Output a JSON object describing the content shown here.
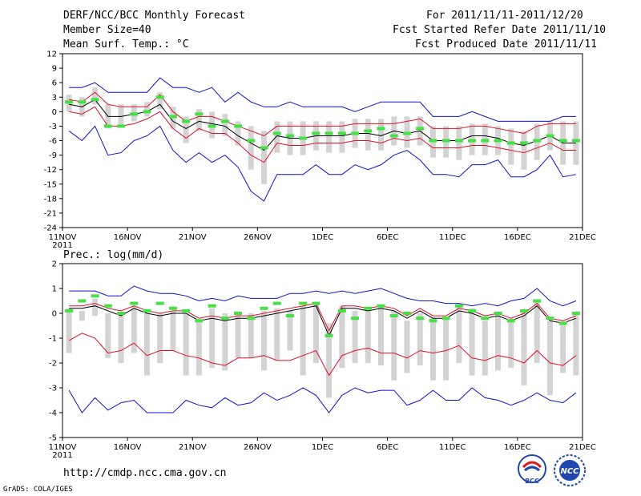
{
  "header": {
    "title": "DERF/NCC/BCC Monthly Forecast",
    "member_size": "Member Size=40",
    "variable": "Mean Surf. Temp.: °C",
    "period": "For 2011/11/11-2011/12/20",
    "started": "Fcst Started Refer Date 2011/11/10",
    "produced": "Fcst Produced Date 2011/11/11"
  },
  "footer": {
    "url": "http://cmdp.ncc.cma.gov.cn",
    "grads": "GrADS: COLA/IGES",
    "bcc_logo_text": "BCC",
    "ncc_logo_text": "NCC"
  },
  "colors": {
    "box": "#d3d3d3",
    "median": "#000000",
    "percentile": "#e0102a",
    "extreme": "#1010d0",
    "obs": "#44e044"
  },
  "chart_data": [
    {
      "type": "box-time-series",
      "title": "Mean Surf. Temp.: °C",
      "ylabel": "°C",
      "ylim": [
        -24,
        12
      ],
      "yticks": [
        12,
        9,
        6,
        3,
        0,
        -3,
        -6,
        -9,
        -12,
        -15,
        -18,
        -21,
        -24
      ],
      "x_tick_labels": [
        "11NOV",
        "16NOV",
        "21NOV",
        "26NOV",
        "1DEC",
        "6DEC",
        "11DEC",
        "16DEC",
        "21DEC"
      ],
      "x_year_label": "2011",
      "x_tick_days": [
        0,
        5,
        10,
        15,
        20,
        25,
        30,
        35,
        40
      ],
      "days": 40,
      "series": [
        {
          "name": "max",
          "color": "#1010d0",
          "values": [
            5,
            5,
            6,
            4,
            4,
            4,
            4,
            7,
            5,
            5,
            4,
            5,
            2,
            4,
            2,
            1,
            1,
            2,
            1,
            1,
            1,
            1,
            0,
            1,
            2,
            2,
            2,
            2,
            -1,
            -1,
            -1,
            0,
            -1,
            -2,
            -2,
            -2,
            -2,
            -2,
            -1,
            -1
          ]
        },
        {
          "name": "upper",
          "color": "#e0102a",
          "values": [
            2.5,
            2,
            4,
            1.5,
            1,
            1,
            1,
            3.5,
            0,
            -2,
            -1,
            -1,
            -2,
            -3,
            -4,
            -5,
            -3,
            -3,
            -3,
            -3,
            -3,
            -3,
            -2.5,
            -2.5,
            -2.5,
            -2.5,
            -2,
            -1.5,
            -3.5,
            -3.5,
            -3.5,
            -3,
            -3,
            -3.5,
            -4,
            -4.5,
            -3,
            -2.5,
            -2.5,
            -2.5
          ]
        },
        {
          "name": "median",
          "color": "#000000",
          "values": [
            1.5,
            1,
            2.5,
            -1,
            -1,
            -0.5,
            0,
            1.5,
            -2,
            -3.5,
            -2,
            -2.5,
            -3,
            -5,
            -6.5,
            -8,
            -5,
            -5.5,
            -5.5,
            -5,
            -5,
            -5,
            -4.5,
            -4.5,
            -5,
            -4,
            -4.5,
            -4,
            -6,
            -6,
            -6,
            -5,
            -5,
            -5.5,
            -6.5,
            -7,
            -6,
            -5,
            -6.5,
            -6.5
          ]
        },
        {
          "name": "lower",
          "color": "#e0102a",
          "values": [
            0,
            -0.5,
            1,
            -3,
            -3,
            -2.5,
            -1.5,
            0,
            -3.5,
            -5.5,
            -3.5,
            -4.5,
            -4.5,
            -6.5,
            -9,
            -10.5,
            -6.5,
            -7,
            -7,
            -6.5,
            -6.5,
            -6.5,
            -6,
            -6,
            -6.5,
            -5.5,
            -6,
            -5.5,
            -7.5,
            -7.5,
            -7.5,
            -7,
            -7,
            -7.5,
            -8,
            -8.5,
            -7.5,
            -6.5,
            -8,
            -8
          ]
        },
        {
          "name": "min",
          "color": "#1010d0",
          "values": [
            -4,
            -6,
            -3,
            -9,
            -8.5,
            -6,
            -5,
            -3,
            -8,
            -10.5,
            -8.5,
            -10.5,
            -9,
            -11.5,
            -16.5,
            -18.5,
            -13,
            -13,
            -13,
            -11,
            -13,
            -13,
            -11,
            -12,
            -11,
            -9,
            -8,
            -10,
            -13,
            -13,
            -13.5,
            -11,
            -11,
            -10,
            -13.5,
            -13.5,
            -12,
            -9,
            -13.5,
            -13
          ]
        }
      ],
      "boxes_low": [
        0,
        -1,
        1.5,
        -3.5,
        -3,
        -2,
        -1,
        0.5,
        -3.5,
        -6.5,
        -4,
        -5.5,
        -5,
        -7,
        -12,
        -15,
        -8.5,
        -9,
        -9,
        -8,
        -8.5,
        -8.5,
        -7.5,
        -8,
        -8,
        -7,
        -7.5,
        -7,
        -9.5,
        -9.5,
        -10,
        -9,
        -9,
        -9,
        -11,
        -12,
        -10,
        -8,
        -11,
        -11
      ],
      "boxes_high": [
        3.5,
        3,
        5,
        1.5,
        1.5,
        1.5,
        2,
        4,
        1,
        -1,
        0.5,
        0,
        -0.5,
        -2,
        -3,
        -4,
        -2,
        -2,
        -2,
        -2,
        -2,
        -2,
        -1.5,
        -1.5,
        -1.5,
        -1,
        -1,
        -1,
        -3,
        -3,
        -3,
        -2.5,
        -2.5,
        -3,
        -3.5,
        -4,
        -2.5,
        -2,
        -2,
        -2
      ],
      "obs": [
        2,
        2,
        2.5,
        -3,
        -3,
        -0.5,
        0,
        3,
        -1,
        -2,
        -0.5,
        -3,
        -2,
        -3,
        -6,
        -7.5,
        -4.5,
        -5,
        -5.5,
        -4.5,
        -4.5,
        -4.5,
        -4.5,
        -4,
        -3.5,
        -5,
        -4.5,
        -3.5,
        -6,
        -6,
        -6,
        -6,
        -6,
        -6,
        -6.5,
        -6.5,
        -6,
        -5,
        -6,
        -6
      ]
    },
    {
      "type": "box-time-series",
      "title": "Prec.: log(mm/d)",
      "ylabel": "log(mm/d)",
      "ylim": [
        -5,
        2
      ],
      "yticks": [
        2,
        1,
        0,
        -1,
        -2,
        -3,
        -4,
        -5
      ],
      "x_tick_labels": [
        "11NOV",
        "16NOV",
        "21NOV",
        "26NOV",
        "1DEC",
        "6DEC",
        "11DEC",
        "16DEC",
        "21DEC"
      ],
      "x_year_label": "2011",
      "x_tick_days": [
        0,
        5,
        10,
        15,
        20,
        25,
        30,
        35,
        40
      ],
      "days": 40,
      "series": [
        {
          "name": "max",
          "color": "#1010d0",
          "values": [
            0.9,
            0.9,
            0.9,
            0.7,
            0.7,
            1.1,
            0.9,
            0.8,
            0.8,
            0.7,
            0.5,
            0.6,
            0.5,
            0.7,
            0.6,
            0.6,
            0.6,
            0.8,
            0.8,
            0.9,
            0.8,
            0.9,
            0.8,
            0.9,
            1.0,
            0.8,
            0.6,
            0.5,
            0.5,
            0.4,
            0.4,
            0.3,
            0.4,
            0.3,
            0.5,
            0.6,
            1.0,
            0.5,
            0.3,
            0.5
          ]
        },
        {
          "name": "upper",
          "color": "#e0102a",
          "values": [
            0.3,
            0.3,
            0.4,
            0.2,
            0.1,
            0.3,
            0.1,
            0.0,
            0.1,
            0.1,
            -0.2,
            -0.1,
            -0.2,
            -0.1,
            -0.1,
            0.0,
            0.1,
            0.2,
            0.3,
            0.4,
            -0.7,
            0.3,
            0.3,
            0.2,
            0.3,
            0.2,
            -0.1,
            0.2,
            -0.1,
            -0.1,
            0.2,
            0.1,
            -0.1,
            0.0,
            -0.2,
            0.0,
            0.4,
            -0.2,
            -0.3,
            -0.1
          ]
        },
        {
          "name": "median",
          "color": "#000000",
          "values": [
            0.2,
            0.2,
            0.3,
            0.1,
            -0.1,
            0.2,
            0.0,
            -0.1,
            0.0,
            0.0,
            -0.3,
            -0.2,
            -0.3,
            -0.2,
            -0.2,
            -0.1,
            0.0,
            0.1,
            0.2,
            0.3,
            -0.9,
            0.2,
            0.2,
            0.1,
            0.2,
            0.1,
            -0.2,
            0.1,
            -0.2,
            -0.2,
            0.1,
            0.0,
            -0.2,
            -0.1,
            -0.3,
            -0.1,
            0.3,
            -0.3,
            -0.4,
            -0.2
          ]
        },
        {
          "name": "lower",
          "color": "#e0102a",
          "values": [
            -1.1,
            -0.8,
            -1.0,
            -1.6,
            -1.5,
            -1.2,
            -1.7,
            -1.5,
            -1.5,
            -1.7,
            -1.8,
            -2.0,
            -2.1,
            -1.8,
            -1.8,
            -1.7,
            -1.9,
            -1.9,
            -1.7,
            -1.5,
            -2.5,
            -1.7,
            -1.5,
            -1.4,
            -1.6,
            -1.6,
            -1.8,
            -1.5,
            -1.6,
            -1.5,
            -1.3,
            -1.8,
            -1.9,
            -1.7,
            -1.8,
            -2.0,
            -1.5,
            -2.0,
            -2.1,
            -1.7
          ]
        },
        {
          "name": "min",
          "color": "#1010d0",
          "values": [
            -3.1,
            -4.0,
            -3.4,
            -3.9,
            -3.6,
            -3.5,
            -4.0,
            -4.0,
            -4.0,
            -3.5,
            -3.7,
            -3.8,
            -3.4,
            -3.7,
            -3.6,
            -3.2,
            -3.5,
            -3.3,
            -3.0,
            -3.3,
            -4.0,
            -3.3,
            -3.0,
            -3.2,
            -3.1,
            -3.1,
            -3.7,
            -3.5,
            -3.1,
            -3.5,
            -3.5,
            -3.0,
            -3.4,
            -3.5,
            -3.7,
            -3.5,
            -3.2,
            -3.5,
            -3.6,
            -3.2
          ]
        },
        {
          "name": "obs",
          "color": "#44e044",
          "values": [
            0.1,
            0.5,
            0.7,
            0.3,
            0.0,
            0.4,
            0.1,
            0.4,
            0.2,
            0.1,
            -0.3,
            0.3,
            -0.2,
            0.0,
            -0.2,
            0.2,
            0.4,
            -0.1,
            0.4,
            0.4,
            -0.9,
            0.1,
            -0.2,
            0.2,
            0.3,
            -0.1,
            0.0,
            -0.2,
            -0.3,
            -0.2,
            0.3,
            0.1,
            -0.2,
            0.0,
            -0.3,
            0.1,
            0.5,
            -0.2,
            -0.4,
            0.0
          ]
        }
      ],
      "boxes_low": [
        -1.6,
        -0.3,
        -0.1,
        -1.8,
        -2.0,
        -1.6,
        -2.5,
        -2.0,
        -1.5,
        -2.5,
        -2.5,
        -2.2,
        -2.3,
        -1.8,
        -1.8,
        -2.3,
        -1.9,
        -1.5,
        -2.5,
        -2.0,
        -3.4,
        -2.2,
        -2.0,
        -2.0,
        -2.1,
        -2.7,
        -2.4,
        -2.1,
        -2.7,
        -2.7,
        -2.0,
        -2.5,
        -2.5,
        -2.3,
        -2.2,
        -2.9,
        -2.0,
        -3.3,
        -2.4,
        -2.5
      ],
      "boxes_high": [
        0.2,
        0.1,
        0.6,
        0.0,
        -0.1,
        0.3,
        0.0,
        0.0,
        0.1,
        0.0,
        -0.3,
        0.2,
        0.0,
        0.0,
        0.0,
        0.1,
        0.2,
        0.1,
        0.3,
        0.4,
        -0.4,
        0.3,
        0.1,
        0.1,
        0.3,
        0.1,
        -0.3,
        0.0,
        -0.2,
        -0.2,
        0.3,
        0.2,
        -0.3,
        0.0,
        -0.2,
        0.1,
        0.5,
        -0.3,
        -0.4,
        0.0
      ]
    }
  ]
}
